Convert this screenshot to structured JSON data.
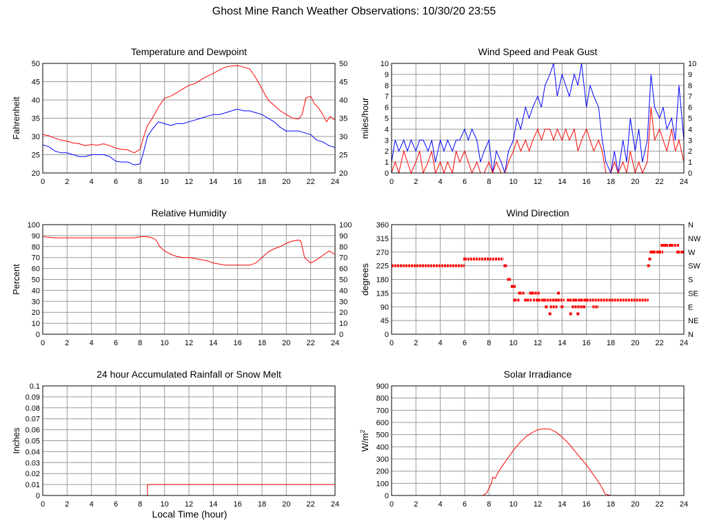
{
  "page": {
    "title": "Ghost Mine Ranch Weather Observations: 10/30/20 23:55",
    "xlabel": "Local Time (hour)"
  },
  "colors": {
    "primary": "#ff0000",
    "secondary": "#0000ff",
    "grid": "#999999",
    "axis": "#000000"
  },
  "chart_data": [
    {
      "id": "temp",
      "type": "line",
      "title": "Temperature and Dewpoint",
      "ylabel": "Fahrenheit",
      "xlim": [
        0,
        24
      ],
      "ylim": [
        20,
        50
      ],
      "x_ticks": [
        0,
        2,
        4,
        6,
        8,
        10,
        12,
        14,
        16,
        18,
        20,
        22,
        24
      ],
      "y_ticks": [
        20,
        25,
        30,
        35,
        40,
        45,
        50
      ],
      "right_ticks": [
        20,
        25,
        30,
        35,
        40,
        45,
        50
      ],
      "grid": true,
      "series": [
        {
          "color": "#ff0000",
          "x": [
            0,
            0.5,
            1,
            1.5,
            2,
            2.5,
            3,
            3.5,
            4,
            4.5,
            5,
            5.5,
            6,
            6.5,
            7,
            7.5,
            8,
            8.3,
            8.6,
            9,
            9.5,
            10,
            10.5,
            11,
            11.5,
            12,
            12.5,
            13,
            13.5,
            14,
            14.5,
            15,
            15.5,
            16,
            16.5,
            17,
            17.5,
            18,
            18.5,
            19,
            19.5,
            20,
            20.5,
            21,
            21.3,
            21.6,
            22,
            22.3,
            22.6,
            23,
            23.3,
            23.6,
            24
          ],
          "y": [
            30.5,
            30.2,
            29.5,
            29,
            28.7,
            28.2,
            28,
            27.5,
            27.8,
            27.6,
            28,
            27.5,
            26.8,
            26.5,
            26.3,
            25.5,
            26.5,
            30,
            33,
            35,
            38,
            40.5,
            41,
            42,
            43,
            44,
            44.5,
            45.5,
            46.5,
            47.2,
            48.2,
            49,
            49.3,
            49.4,
            49,
            48.5,
            46,
            43,
            40,
            38.5,
            37,
            36,
            35,
            34.8,
            36,
            40.5,
            41,
            39,
            38,
            36,
            34,
            35.5,
            34.5
          ]
        },
        {
          "color": "#0000ff",
          "x": [
            0,
            0.5,
            1,
            1.5,
            2,
            2.5,
            3,
            3.5,
            4,
            4.5,
            5,
            5.5,
            6,
            6.5,
            7,
            7.5,
            8,
            8.3,
            8.6,
            9,
            9.5,
            10,
            10.5,
            11,
            11.5,
            12,
            12.5,
            13,
            13.5,
            14,
            14.5,
            15,
            15.5,
            16,
            16.5,
            17,
            17.5,
            18,
            18.5,
            19,
            19.5,
            20,
            20.5,
            21,
            21.5,
            22,
            22.5,
            23,
            23.5,
            24
          ],
          "y": [
            27.7,
            27.2,
            26,
            25.5,
            25.5,
            25,
            24.5,
            24.5,
            25,
            25,
            25,
            24.5,
            23.2,
            23,
            23,
            22.2,
            22.5,
            26,
            30,
            32,
            34,
            33.5,
            33,
            33.5,
            33.5,
            34,
            34.5,
            35,
            35.5,
            36,
            36,
            36.5,
            37,
            37.5,
            37,
            37,
            36.5,
            36,
            35,
            34,
            32.5,
            31.5,
            31.5,
            31.5,
            31,
            30.5,
            29,
            28.5,
            27.5,
            27
          ]
        }
      ]
    },
    {
      "id": "wind",
      "type": "line",
      "title": "Wind Speed and Peak Gust",
      "ylabel": "miles/hour",
      "xlim": [
        0,
        24
      ],
      "ylim": [
        0,
        10
      ],
      "x_ticks": [
        0,
        2,
        4,
        6,
        8,
        10,
        12,
        14,
        16,
        18,
        20,
        22,
        24
      ],
      "y_ticks": [
        0,
        1,
        2,
        3,
        4,
        5,
        6,
        7,
        8,
        9,
        10
      ],
      "right_ticks": [
        0,
        1,
        2,
        3,
        4,
        5,
        6,
        7,
        8,
        9,
        10
      ],
      "grid": true,
      "series": [
        {
          "color": "#0000ff",
          "x": [
            0,
            0.3,
            0.6,
            1,
            1.3,
            1.6,
            2,
            2.3,
            2.6,
            3,
            3.3,
            3.6,
            4,
            4.3,
            4.6,
            5,
            5.3,
            5.6,
            6,
            6.3,
            6.6,
            7,
            7.3,
            7.6,
            8,
            8.3,
            8.6,
            9,
            9.3,
            9.6,
            10,
            10.3,
            10.6,
            11,
            11.3,
            11.6,
            12,
            12.3,
            12.6,
            13,
            13.3,
            13.6,
            14,
            14.3,
            14.6,
            15,
            15.3,
            15.6,
            16,
            16.3,
            16.6,
            17,
            17.3,
            17.6,
            18,
            18.3,
            18.6,
            19,
            19.3,
            19.6,
            20,
            20.3,
            20.6,
            21,
            21.3,
            21.6,
            22,
            22.3,
            22.6,
            23,
            23.3,
            23.6,
            24
          ],
          "y": [
            1,
            3,
            2,
            3,
            2,
            3,
            2,
            3,
            3,
            2,
            3,
            1,
            3,
            2,
            3,
            2,
            3,
            3,
            4,
            3,
            4,
            3,
            1,
            2,
            3,
            0,
            2,
            1,
            0,
            2,
            3,
            5,
            4,
            6,
            5,
            6,
            7,
            6,
            8,
            9,
            10,
            7,
            9,
            8,
            7,
            9,
            8,
            10,
            6,
            8,
            7,
            6,
            3,
            1,
            0,
            2,
            0,
            3,
            1,
            5,
            2,
            4,
            1,
            3,
            9,
            6,
            5,
            6,
            4,
            5,
            3,
            8,
            3
          ]
        },
        {
          "color": "#ff0000",
          "x": [
            0,
            0.3,
            0.6,
            1,
            1.3,
            1.6,
            2,
            2.3,
            2.6,
            3,
            3.3,
            3.6,
            4,
            4.3,
            4.6,
            5,
            5.3,
            5.6,
            6,
            6.3,
            6.6,
            7,
            7.3,
            7.6,
            8,
            8.3,
            8.6,
            9,
            9.3,
            9.6,
            10,
            10.3,
            10.6,
            11,
            11.3,
            11.6,
            12,
            12.3,
            12.6,
            13,
            13.3,
            13.6,
            14,
            14.3,
            14.6,
            15,
            15.3,
            15.6,
            16,
            16.3,
            16.6,
            17,
            17.3,
            17.6,
            18,
            18.3,
            18.6,
            19,
            19.3,
            19.6,
            20,
            20.3,
            20.6,
            21,
            21.3,
            21.6,
            22,
            22.3,
            22.6,
            23,
            23.3,
            23.6,
            24
          ],
          "y": [
            0,
            1,
            0,
            2,
            1,
            0,
            1,
            2,
            0,
            1,
            2,
            0,
            1,
            0,
            1,
            0,
            2,
            1,
            2,
            1,
            0,
            1,
            0,
            0,
            1,
            0,
            1,
            0,
            0,
            1,
            2,
            3,
            2,
            3,
            2,
            3,
            4,
            3,
            4,
            4,
            3,
            4,
            3,
            4,
            3,
            4,
            2,
            3,
            4,
            3,
            2,
            3,
            2,
            0,
            0,
            1,
            0,
            1,
            0,
            2,
            0,
            1,
            0,
            1,
            6,
            3,
            4,
            3,
            2,
            4,
            2,
            3,
            1
          ]
        }
      ]
    },
    {
      "id": "rh",
      "type": "line",
      "title": "Relative Humidity",
      "ylabel": "Percent",
      "xlim": [
        0,
        24
      ],
      "ylim": [
        0,
        100
      ],
      "x_ticks": [
        0,
        2,
        4,
        6,
        8,
        10,
        12,
        14,
        16,
        18,
        20,
        22,
        24
      ],
      "y_ticks": [
        0,
        10,
        20,
        30,
        40,
        50,
        60,
        70,
        80,
        90,
        100
      ],
      "right_ticks": [
        0,
        10,
        20,
        30,
        40,
        50,
        60,
        70,
        80,
        90,
        100
      ],
      "grid": true,
      "series": [
        {
          "color": "#ff0000",
          "x": [
            0,
            1,
            2,
            3,
            4,
            5,
            6,
            7,
            7.5,
            8,
            8.5,
            9,
            9.3,
            9.6,
            10,
            10.5,
            11,
            11.5,
            12,
            12.5,
            13,
            13.5,
            14,
            14.5,
            15,
            15.5,
            16,
            16.5,
            17,
            17.5,
            18,
            18.5,
            19,
            19.5,
            20,
            20.5,
            21,
            21.2,
            21.5,
            22,
            22.5,
            23,
            23.5,
            24
          ],
          "y": [
            89,
            88,
            88,
            88,
            88,
            88,
            88,
            88,
            88,
            89,
            89,
            88,
            86,
            80,
            76,
            73,
            71,
            70,
            70,
            69,
            68,
            67,
            65,
            64,
            63,
            63,
            63,
            63,
            63,
            65,
            70,
            75,
            78,
            80,
            83,
            85,
            86,
            85,
            70,
            65,
            68,
            72,
            76,
            73
          ]
        }
      ]
    },
    {
      "id": "wdir",
      "type": "scatter",
      "title": "Wind Direction",
      "ylabel": "degrees",
      "xlim": [
        0,
        24
      ],
      "ylim": [
        0,
        360
      ],
      "x_ticks": [
        0,
        2,
        4,
        6,
        8,
        10,
        12,
        14,
        16,
        18,
        20,
        22,
        24
      ],
      "y_ticks": [
        0,
        45,
        90,
        135,
        180,
        225,
        270,
        315,
        360
      ],
      "right_ticks": [
        "N",
        "NE",
        "E",
        "SE",
        "S",
        "SW",
        "W",
        "NW",
        "N"
      ],
      "grid": true,
      "series": [
        {
          "color": "#ff0000",
          "x": [
            0,
            6,
            9.3,
            9.6,
            9.9,
            10.1,
            10.5,
            11,
            11.5,
            12,
            12.5,
            12.7,
            13,
            13.5,
            13.7,
            14,
            14.5,
            14.7,
            15,
            15.3,
            15.6,
            15.8,
            16,
            21.1,
            21.2,
            21.3,
            21.5,
            22,
            22.2,
            22.5,
            23,
            23.5,
            24
          ],
          "y": [
            225,
            247,
            225,
            180,
            157,
            112,
            135,
            112,
            135,
            112,
            112,
            90,
            67,
            112,
            135,
            90,
            112,
            67,
            112,
            67,
            112,
            90,
            112,
            225,
            247,
            270,
            270,
            270,
            292,
            292,
            292,
            270,
            270
          ],
          "segments": [
            [
              0,
              6,
              225
            ],
            [
              6,
              9.2,
              247
            ],
            [
              9.3,
              9.5,
              225
            ],
            [
              9.5,
              9.8,
              180
            ],
            [
              9.8,
              10.2,
              157
            ],
            [
              10.1,
              10.5,
              112
            ],
            [
              10.5,
              10.9,
              135
            ],
            [
              10.9,
              11.5,
              112
            ],
            [
              11.3,
              12.2,
              135
            ],
            [
              11.6,
              14,
              112
            ],
            [
              12.5,
              14.2,
              112
            ],
            [
              13,
              13.6,
              90
            ],
            [
              14.4,
              16,
              112
            ],
            [
              14.8,
              15.7,
              90
            ],
            [
              16,
              21.1,
              112
            ],
            [
              16.5,
              17,
              90
            ],
            [
              21.5,
              22.3,
              270
            ],
            [
              22.3,
              23.6,
              292
            ],
            [
              23.5,
              24,
              270
            ]
          ]
        }
      ]
    },
    {
      "id": "rain",
      "type": "line",
      "title": "24 hour Accumulated Rainfall or Snow Melt",
      "ylabel": "Inches",
      "xlim": [
        0,
        24
      ],
      "ylim": [
        0,
        0.1
      ],
      "x_ticks": [
        0,
        2,
        4,
        6,
        8,
        10,
        12,
        14,
        16,
        18,
        20,
        22,
        24
      ],
      "y_ticks": [
        0,
        0.01,
        0.02,
        0.03,
        0.04,
        0.05,
        0.06,
        0.07,
        0.08,
        0.09,
        0.1
      ],
      "y_tick_labels": [
        "0",
        "0.01",
        "0.02",
        "0.03",
        "0.04",
        "0.05",
        "0.06",
        "0.07",
        "0.08",
        "0.09",
        "0.1"
      ],
      "grid": true,
      "series": [
        {
          "color": "#ff0000",
          "x": [
            0,
            8.6,
            8.6,
            24
          ],
          "y": [
            0,
            0,
            0.01,
            0.01
          ]
        }
      ]
    },
    {
      "id": "solar",
      "type": "line",
      "title": "Solar Irradiance",
      "ylabel": "W/m",
      "ylabel_sup": "2",
      "xlim": [
        0,
        24
      ],
      "ylim": [
        0,
        900
      ],
      "x_ticks": [
        0,
        2,
        4,
        6,
        8,
        10,
        12,
        14,
        16,
        18,
        20,
        22,
        24
      ],
      "y_ticks": [
        0,
        100,
        200,
        300,
        400,
        500,
        600,
        700,
        800,
        900
      ],
      "grid": true,
      "series": [
        {
          "color": "#ff0000",
          "x": [
            0,
            7.5,
            7.8,
            8,
            8.2,
            8.3,
            8.5,
            8.7,
            9,
            9.5,
            10,
            10.5,
            11,
            11.5,
            12,
            12.5,
            13,
            13.5,
            14,
            14.5,
            15,
            15.5,
            16,
            16.5,
            17,
            17.3,
            17.5,
            17.6,
            18,
            24
          ],
          "y": [
            0,
            0,
            20,
            60,
            100,
            150,
            140,
            180,
            230,
            300,
            370,
            430,
            480,
            515,
            540,
            548,
            545,
            520,
            480,
            430,
            370,
            310,
            250,
            180,
            110,
            60,
            20,
            10,
            0,
            0
          ]
        }
      ]
    }
  ]
}
